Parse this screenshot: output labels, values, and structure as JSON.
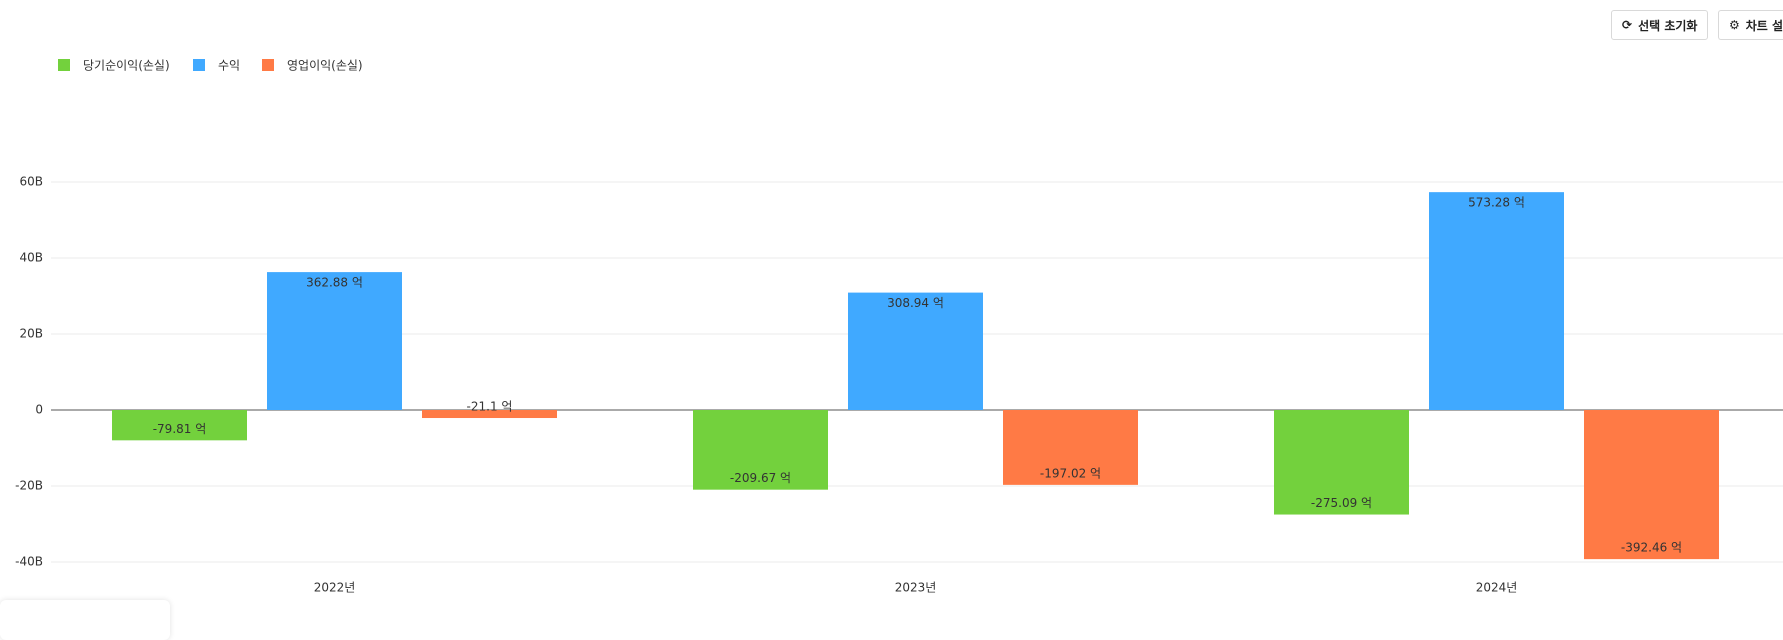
{
  "toolbar": {
    "reset": "선택 초기화",
    "settings": "차트 설"
  },
  "chart_data": {
    "type": "bar",
    "categories": [
      "2022년",
      "2023년",
      "2024년"
    ],
    "series": [
      {
        "name": "당기순이익(손실)",
        "color": "#73d13d",
        "values": [
          -7.981,
          -20.967,
          -27.509
        ],
        "value_labels": [
          "-79.81 억",
          "-209.67 억",
          "-275.09 억"
        ]
      },
      {
        "name": "수익",
        "color": "#40a9ff",
        "values": [
          36.288,
          30.894,
          57.328
        ],
        "value_labels": [
          "362.88 억",
          "308.94 억",
          "573.28 억"
        ]
      },
      {
        "name": "영업이익(손실)",
        "color": "#ff7a45",
        "values": [
          -2.11,
          -19.702,
          -39.246
        ],
        "value_labels": [
          "-21.1 억",
          "-197.02 억",
          "-392.46 억"
        ]
      }
    ],
    "ylim": [
      -40,
      60
    ],
    "yticks": [
      {
        "value": -40,
        "label": "-40B"
      },
      {
        "value": -20,
        "label": "-20B"
      },
      0,
      {
        "value": 20,
        "label": "20B"
      },
      {
        "value": 40,
        "label": "40B"
      },
      {
        "value": 60,
        "label": "60B"
      }
    ],
    "grid": true
  }
}
